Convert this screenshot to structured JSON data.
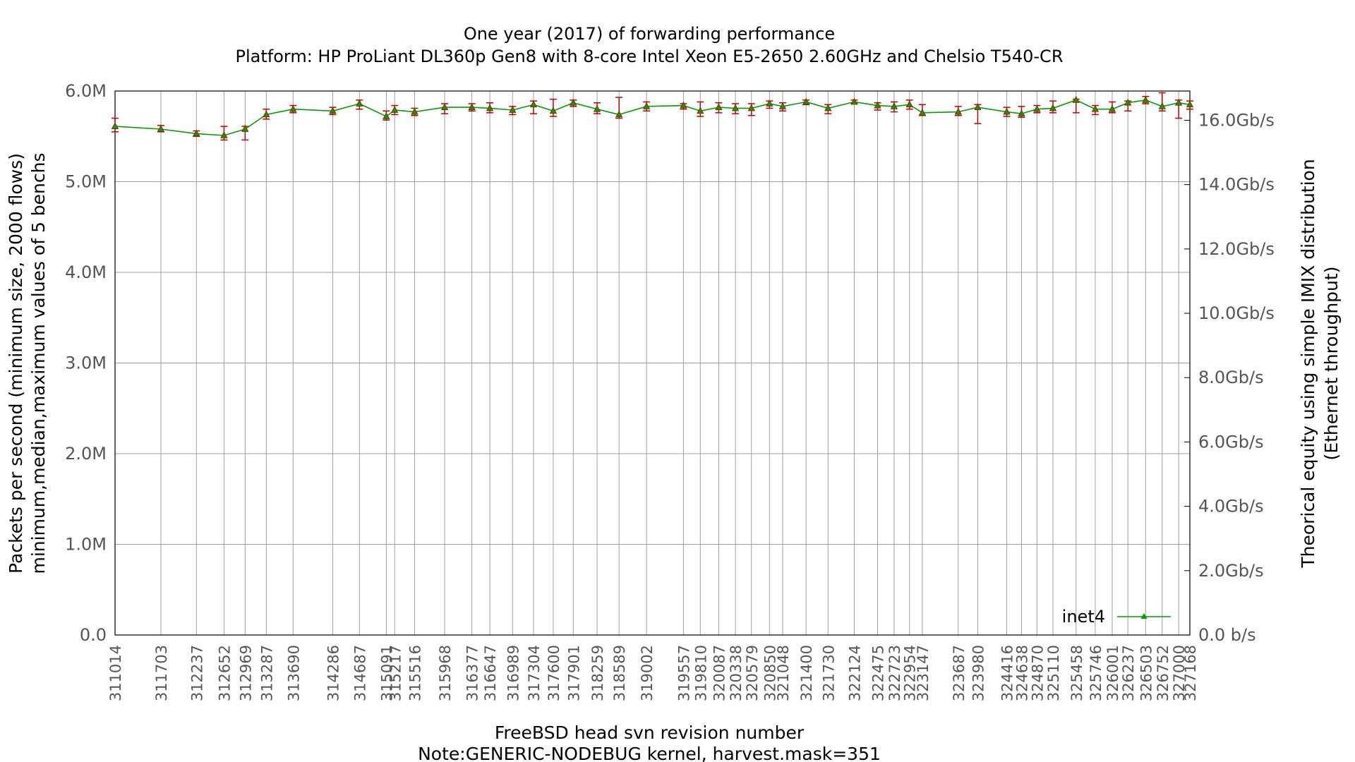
{
  "chart_data": {
    "type": "line",
    "title": "One year (2017) of forwarding performance",
    "subtitle": "Platform: HP ProLiant DL360p Gen8 with 8-core Intel Xeon E5-2650 2.60GHz and Chelsio T540-CR",
    "xlabel": "FreeBSD head svn revision number",
    "xnote": "Note:GENERIC-NODEBUG kernel, harvest.mask=351",
    "ylabel": "Packets per second (minimum size, 2000 flows)",
    "ylabel2": "minimum,median,maximum values of 5 benchs",
    "y2label": "Theorical equity using simple IMIX distribution",
    "y2label2": "(Ethernet throughput)",
    "ylim": [
      0,
      6000000
    ],
    "y_ticks": [
      "0.0",
      "1.0M",
      "2.0M",
      "3.0M",
      "4.0M",
      "5.0M",
      "6.0M"
    ],
    "y2_ticks": [
      "0.0 b/s",
      "2.0Gb/s",
      "4.0Gb/s",
      "6.0Gb/s",
      "8.0Gb/s",
      "10.0Gb/s",
      "12.0Gb/s",
      "14.0Gb/s",
      "16.0Gb/s"
    ],
    "y2_scale_gbps_per_mpps": 2.8183,
    "grid": true,
    "legend_position": "bottom-right",
    "line_color": "#00a000",
    "marker_color": "#00a000",
    "errorbar_color": "#c00000",
    "series": [
      {
        "name": "inet4",
        "points": [
          {
            "x": 311014,
            "median": 5.61,
            "min": 5.55,
            "max": 5.7
          },
          {
            "x": 311703,
            "median": 5.58,
            "min": 5.55,
            "max": 5.62
          },
          {
            "x": 312237,
            "median": 5.53,
            "min": 5.5,
            "max": 5.56
          },
          {
            "x": 312652,
            "median": 5.51,
            "min": 5.46,
            "max": 5.61
          },
          {
            "x": 312969,
            "median": 5.58,
            "min": 5.46,
            "max": 5.61
          },
          {
            "x": 313287,
            "median": 5.74,
            "min": 5.69,
            "max": 5.8
          },
          {
            "x": 313690,
            "median": 5.8,
            "min": 5.76,
            "max": 5.84
          },
          {
            "x": 314286,
            "median": 5.78,
            "min": 5.74,
            "max": 5.82
          },
          {
            "x": 314687,
            "median": 5.86,
            "min": 5.8,
            "max": 5.9
          },
          {
            "x": 315091,
            "median": 5.72,
            "min": 5.68,
            "max": 5.78
          },
          {
            "x": 315217,
            "median": 5.79,
            "min": 5.74,
            "max": 5.84
          },
          {
            "x": 315516,
            "median": 5.77,
            "min": 5.73,
            "max": 5.81
          },
          {
            "x": 315968,
            "median": 5.82,
            "min": 5.75,
            "max": 5.86
          },
          {
            "x": 316377,
            "median": 5.82,
            "min": 5.78,
            "max": 5.86
          },
          {
            "x": 316647,
            "median": 5.81,
            "min": 5.76,
            "max": 5.87
          },
          {
            "x": 316989,
            "median": 5.79,
            "min": 5.74,
            "max": 5.83
          },
          {
            "x": 317304,
            "median": 5.85,
            "min": 5.75,
            "max": 5.89
          },
          {
            "x": 317600,
            "median": 5.78,
            "min": 5.72,
            "max": 5.91
          },
          {
            "x": 317901,
            "median": 5.87,
            "min": 5.83,
            "max": 5.9
          },
          {
            "x": 318259,
            "median": 5.8,
            "min": 5.75,
            "max": 5.87
          },
          {
            "x": 318589,
            "median": 5.74,
            "min": 5.7,
            "max": 5.93
          },
          {
            "x": 319002,
            "median": 5.83,
            "min": 5.78,
            "max": 5.88
          },
          {
            "x": 319557,
            "median": 5.84,
            "min": 5.8,
            "max": 5.86
          },
          {
            "x": 319810,
            "median": 5.78,
            "min": 5.72,
            "max": 5.88
          },
          {
            "x": 320087,
            "median": 5.82,
            "min": 5.76,
            "max": 5.87
          },
          {
            "x": 320338,
            "median": 5.81,
            "min": 5.75,
            "max": 5.86
          },
          {
            "x": 320579,
            "median": 5.81,
            "min": 5.73,
            "max": 5.86
          },
          {
            "x": 320850,
            "median": 5.86,
            "min": 5.81,
            "max": 5.89
          },
          {
            "x": 321048,
            "median": 5.83,
            "min": 5.78,
            "max": 5.87
          },
          {
            "x": 321400,
            "median": 5.88,
            "min": 5.85,
            "max": 5.9
          },
          {
            "x": 321730,
            "median": 5.81,
            "min": 5.75,
            "max": 5.85
          },
          {
            "x": 322124,
            "median": 5.88,
            "min": 5.86,
            "max": 5.9
          },
          {
            "x": 322475,
            "median": 5.84,
            "min": 5.79,
            "max": 5.87
          },
          {
            "x": 322723,
            "median": 5.83,
            "min": 5.77,
            "max": 5.88
          },
          {
            "x": 322954,
            "median": 5.85,
            "min": 5.8,
            "max": 5.9
          },
          {
            "x": 323147,
            "median": 5.76,
            "min": 5.73,
            "max": 5.85
          },
          {
            "x": 323687,
            "median": 5.77,
            "min": 5.73,
            "max": 5.83
          },
          {
            "x": 323980,
            "median": 5.82,
            "min": 5.64,
            "max": 5.85
          },
          {
            "x": 324416,
            "median": 5.77,
            "min": 5.72,
            "max": 5.82
          },
          {
            "x": 324638,
            "median": 5.75,
            "min": 5.71,
            "max": 5.83
          },
          {
            "x": 324870,
            "median": 5.8,
            "min": 5.76,
            "max": 5.84
          },
          {
            "x": 325110,
            "median": 5.81,
            "min": 5.76,
            "max": 5.89
          },
          {
            "x": 325458,
            "median": 5.9,
            "min": 5.76,
            "max": 5.91
          },
          {
            "x": 325746,
            "median": 5.8,
            "min": 5.74,
            "max": 5.84
          },
          {
            "x": 326001,
            "median": 5.8,
            "min": 5.76,
            "max": 5.88
          },
          {
            "x": 326237,
            "median": 5.87,
            "min": 5.78,
            "max": 5.89
          },
          {
            "x": 326503,
            "median": 5.9,
            "min": 5.86,
            "max": 5.94
          },
          {
            "x": 326752,
            "median": 5.83,
            "min": 5.78,
            "max": 5.98
          },
          {
            "x": 327000,
            "median": 5.87,
            "min": 5.7,
            "max": 5.9
          },
          {
            "x": 327168,
            "median": 5.85,
            "min": 5.8,
            "max": 5.89
          }
        ]
      }
    ]
  }
}
